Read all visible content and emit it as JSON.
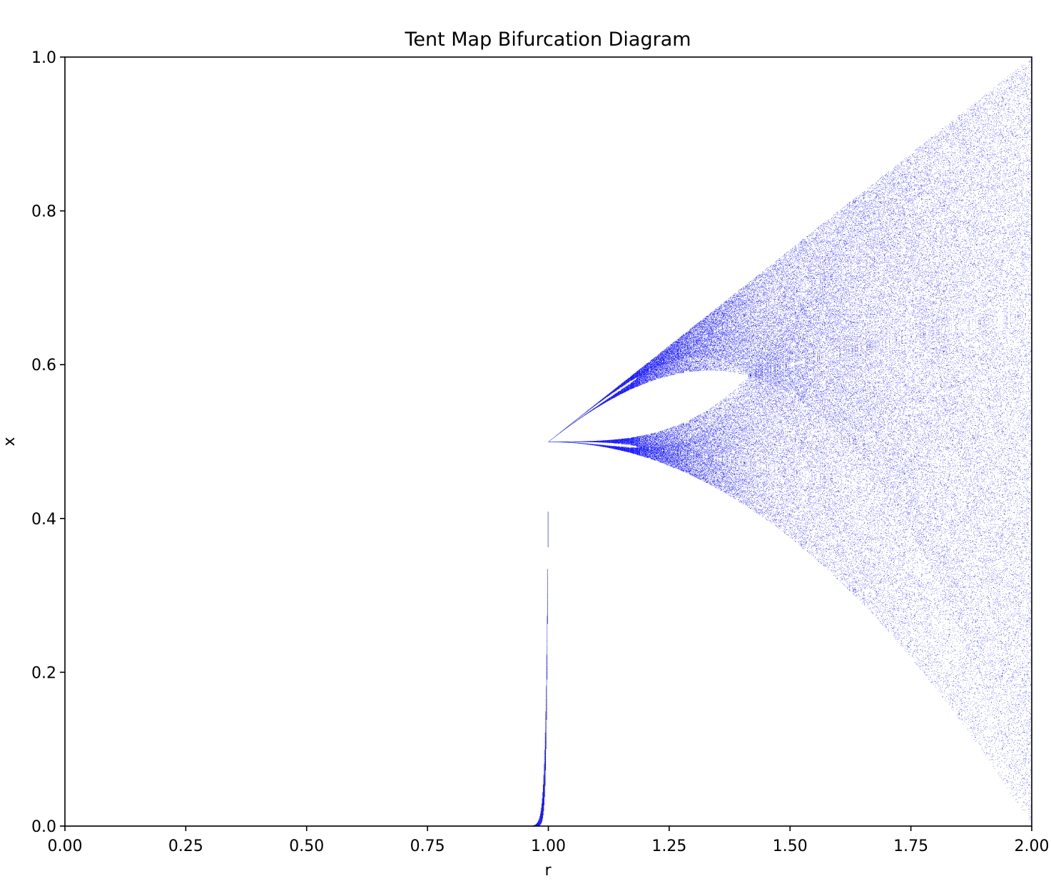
{
  "chart_data": {
    "type": "scatter",
    "title": "Tent Map Bifurcation Diagram",
    "xlabel": "r",
    "ylabel": "x",
    "xlim": [
      0.0,
      2.0
    ],
    "ylim": [
      0.0,
      1.0
    ],
    "x_ticks": [
      "0.00",
      "0.25",
      "0.50",
      "0.75",
      "1.00",
      "1.25",
      "1.50",
      "1.75",
      "2.00"
    ],
    "y_ticks": [
      "0.0",
      "0.2",
      "0.4",
      "0.6",
      "0.8",
      "1.0"
    ],
    "grid": false,
    "legend": "none",
    "series": [
      {
        "description_source": "bifurcation points of the tent map x -> r*min(x, 1-x), iterated from x0 = 0.5",
        "map": "tent",
        "r_range": [
          0.0,
          2.0
        ],
        "r_steps": 2000,
        "x0": 0.5,
        "transient_iterations": 200,
        "plotted_iterations": 120,
        "color": "#0000ff",
        "marker_size": 0.6
      }
    ],
    "approximate_features": [
      {
        "r": 1.0,
        "x": 0.5
      },
      {
        "r": 1.25,
        "x_max": 0.625,
        "x_min": 0.47
      },
      {
        "r": 1.414,
        "x_max": 0.707,
        "x_min": 0.41
      },
      {
        "r": 1.5,
        "x_max": 0.75,
        "x_min": 0.375
      },
      {
        "r": 1.75,
        "x_max": 0.875,
        "x_min": 0.22
      },
      {
        "r": 2.0,
        "x_max": 1.0,
        "x_min": 0.0
      }
    ]
  }
}
